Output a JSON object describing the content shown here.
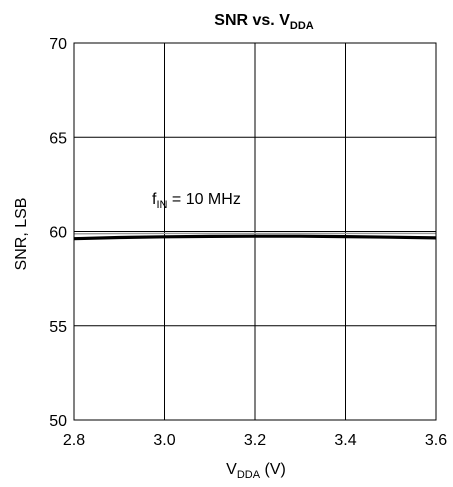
{
  "chart_data": {
    "type": "line",
    "title": {
      "main": "SNR vs. V",
      "sub": "DDA"
    },
    "xlabel": {
      "main": "V",
      "sub": "DDA",
      "suffix": " (V)"
    },
    "ylabel": "SNR, LSB",
    "xlim": [
      2.8,
      3.6
    ],
    "ylim": [
      50,
      70
    ],
    "x_ticks": [
      "2.8",
      "3.0",
      "3.2",
      "3.4",
      "3.6"
    ],
    "y_ticks": [
      "70",
      "65",
      "60",
      "55",
      "50"
    ],
    "grid": true,
    "annotation": {
      "main": "f",
      "sub": "IN",
      "suffix": " = 10 MHz"
    },
    "series": [
      {
        "x": [
          2.8,
          2.9,
          3.0,
          3.1,
          3.2,
          3.3,
          3.4,
          3.5,
          3.6
        ],
        "y": [
          59.62,
          59.68,
          59.72,
          59.74,
          59.75,
          59.75,
          59.73,
          59.7,
          59.66
        ],
        "color": "#000000"
      },
      {
        "x": [
          2.8,
          2.9,
          3.0,
          3.1,
          3.2,
          3.3,
          3.4,
          3.5,
          3.6
        ],
        "y": [
          59.88,
          59.89,
          59.9,
          59.9,
          59.9,
          59.9,
          59.9,
          59.9,
          59.9
        ],
        "color": "#9a9a9a"
      }
    ]
  }
}
